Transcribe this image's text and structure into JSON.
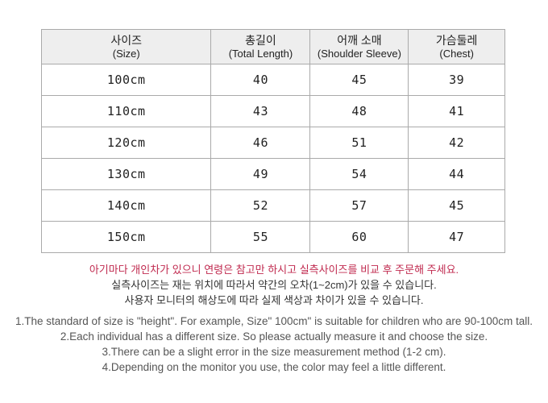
{
  "table": {
    "headers": [
      {
        "ko": "사이즈",
        "en": "(Size)"
      },
      {
        "ko": "총길이",
        "en": "(Total Length)"
      },
      {
        "ko": "어깨 소매",
        "en": "(Shoulder Sleeve)"
      },
      {
        "ko": "가슴둘레",
        "en": "(Chest)"
      }
    ],
    "rows": [
      [
        "100cm",
        "40",
        "45",
        "39"
      ],
      [
        "110cm",
        "43",
        "48",
        "41"
      ],
      [
        "120cm",
        "46",
        "51",
        "42"
      ],
      [
        "130cm",
        "49",
        "54",
        "44"
      ],
      [
        "140cm",
        "52",
        "57",
        "45"
      ],
      [
        "150cm",
        "55",
        "60",
        "47"
      ]
    ]
  },
  "notes": {
    "highlight": "아기마다 개인차가 있으니 연령은 참고만 하시고 실측사이즈를 비교 후 주문해 주세요.",
    "ko": [
      "실측사이즈는 재는 위치에 따라서 약간의  오차(1~2cm)가 있을 수 있습니다.",
      "사용자 모니터의 해상도에 따라 실제 색상과 차이가 있을 수 있습니다."
    ],
    "en": [
      "1.The standard of size is \"height\". For example,  Size\" 100cm\" is suitable for children who are 90-100cm tall.",
      "2.Each individual has a different size. So please actually measure it and choose the size.",
      "3.There can be a slight error in the size measurement method (1-2 cm).",
      "4.Depending on the monitor you use, the color may feel a little different."
    ]
  },
  "colors": {
    "highlight_text": "#c02a4f",
    "header_bg": "#eeeeee",
    "border": "#aaaaaa"
  }
}
